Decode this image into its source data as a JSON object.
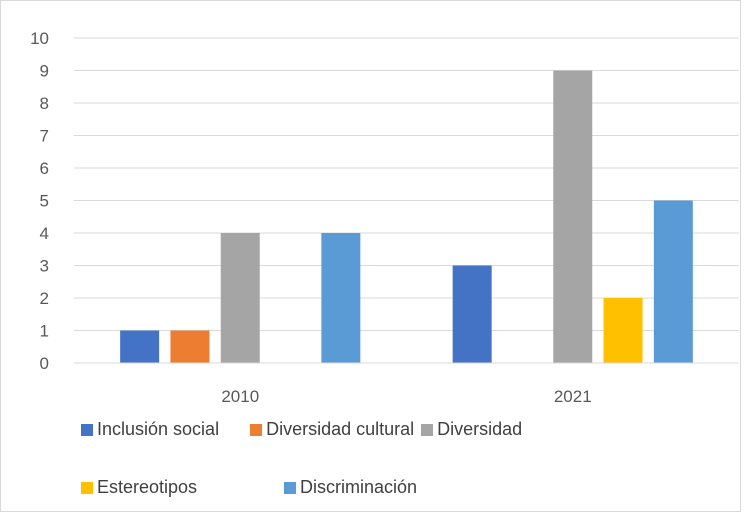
{
  "chart_data": {
    "type": "bar",
    "title": "",
    "xlabel": "",
    "ylabel": "",
    "categories": [
      "2010",
      "2021"
    ],
    "ylim": [
      0,
      10
    ],
    "yticks": [
      0,
      1,
      2,
      3,
      4,
      5,
      6,
      7,
      8,
      9,
      10
    ],
    "grid": true,
    "legend_position": "bottom",
    "series": [
      {
        "name": "Inclusión social",
        "color": "#4472c4",
        "values": [
          1,
          3
        ]
      },
      {
        "name": "Diversidad cultural",
        "color": "#ed7d31",
        "values": [
          1,
          0
        ]
      },
      {
        "name": "Diversidad",
        "color": "#a5a5a5",
        "values": [
          4,
          9
        ]
      },
      {
        "name": "Estereotipos",
        "color": "#ffc000",
        "values": [
          0,
          2
        ]
      },
      {
        "name": "Discriminación",
        "color": "#5b9bd5",
        "values": [
          4,
          5
        ]
      }
    ]
  }
}
